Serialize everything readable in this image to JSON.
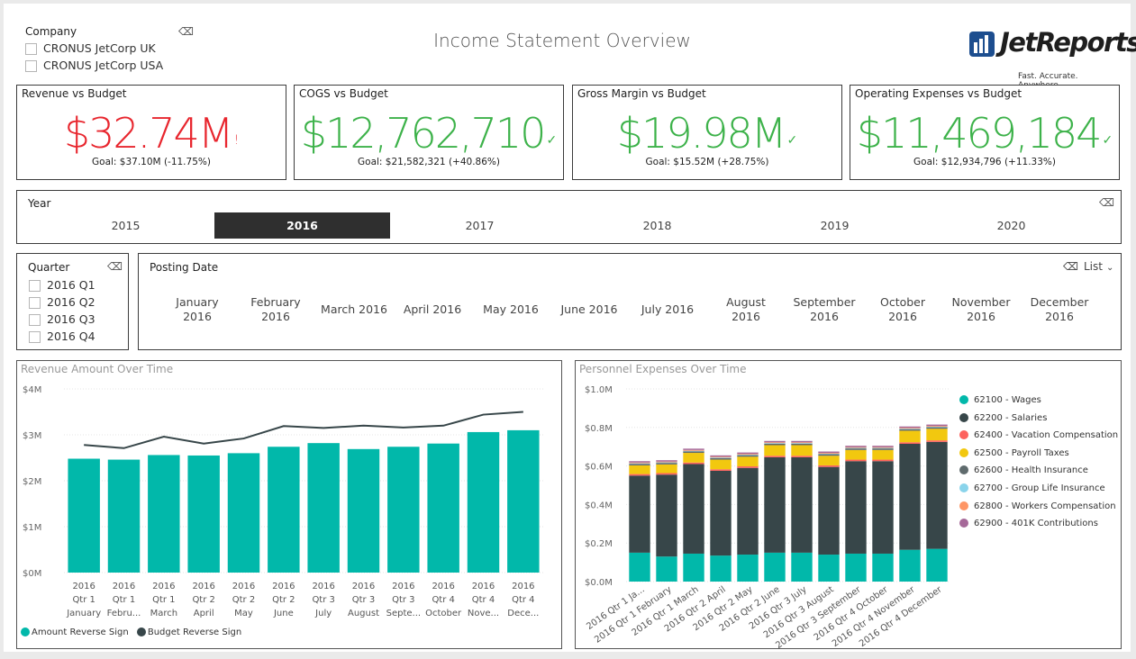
{
  "page": {
    "title": "Income Statement Overview"
  },
  "logo": {
    "brand": "JetReports",
    "tagline": "Fast. Accurate. Anywhere."
  },
  "company_slicer": {
    "title": "Company",
    "items": [
      {
        "label": "CRONUS JetCorp UK"
      },
      {
        "label": "CRONUS JetCorp USA"
      }
    ]
  },
  "kpis": [
    {
      "title": "Revenue vs Budget",
      "value": "$32.74M",
      "mark": "!",
      "goal": "Goal: $37.10M (-11.75%)",
      "color": "#e8262e"
    },
    {
      "title": "COGS vs Budget",
      "value": "$12,762,710",
      "mark": "✓",
      "goal": "Goal: $21,582,321 (+40.86%)",
      "color": "#3db24a"
    },
    {
      "title": "Gross Margin vs Budget",
      "value": "$19.98M",
      "mark": "✓",
      "goal": "Goal: $15.52M (+28.75%)",
      "color": "#3db24a"
    },
    {
      "title": "Operating Expenses vs Budget",
      "value": "$11,469,184",
      "mark": "✓",
      "goal": "Goal: $12,934,796 (+11.33%)",
      "color": "#3db24a"
    }
  ],
  "year_slicer": {
    "title": "Year",
    "items": [
      "2015",
      "2016",
      "2017",
      "2018",
      "2019",
      "2020"
    ],
    "selected": "2016"
  },
  "quarter_slicer": {
    "title": "Quarter",
    "items": [
      "2016 Q1",
      "2016 Q2",
      "2016 Q3",
      "2016 Q4"
    ]
  },
  "posting_date_slicer": {
    "title": "Posting Date",
    "mode_label": "List",
    "months": [
      [
        "January",
        "2016"
      ],
      [
        "February",
        "2016"
      ],
      [
        "March 2016"
      ],
      [
        "April 2016"
      ],
      [
        "May 2016"
      ],
      [
        "June 2016"
      ],
      [
        "July 2016"
      ],
      [
        "August",
        "2016"
      ],
      [
        "September",
        "2016"
      ],
      [
        "October",
        "2016"
      ],
      [
        "November",
        "2016"
      ],
      [
        "December",
        "2016"
      ]
    ]
  },
  "chart_data": [
    {
      "type": "bar",
      "title": "Revenue Amount Over Time",
      "y_ticks": [
        "$0M",
        "$1M",
        "$2M",
        "$3M",
        "$4M"
      ],
      "ylim": [
        0,
        4000000
      ],
      "categories": [
        [
          "2016",
          "Qtr 1",
          "January"
        ],
        [
          "2016",
          "Qtr 1",
          "Febru..."
        ],
        [
          "2016",
          "Qtr 1",
          "March"
        ],
        [
          "2016",
          "Qtr 2",
          "April"
        ],
        [
          "2016",
          "Qtr 2",
          "May"
        ],
        [
          "2016",
          "Qtr 2",
          "June"
        ],
        [
          "2016",
          "Qtr 3",
          "July"
        ],
        [
          "2016",
          "Qtr 3",
          "August"
        ],
        [
          "2016",
          "Qtr 3",
          "Septe..."
        ],
        [
          "2016",
          "Qtr 4",
          "October"
        ],
        [
          "2016",
          "Qtr 4",
          "Nove..."
        ],
        [
          "2016",
          "Qtr 4",
          "Dece..."
        ]
      ],
      "series": [
        {
          "name": "Amount Reverse Sign",
          "kind": "bar",
          "color": "#01b8aa",
          "values": [
            2480000,
            2460000,
            2560000,
            2550000,
            2600000,
            2740000,
            2820000,
            2690000,
            2740000,
            2810000,
            3060000,
            3100000
          ]
        },
        {
          "name": "Budget Reverse Sign",
          "kind": "line",
          "color": "#374649",
          "values": [
            2780000,
            2710000,
            2960000,
            2810000,
            2920000,
            3190000,
            3150000,
            3200000,
            3160000,
            3200000,
            3440000,
            3500000
          ]
        }
      ],
      "grid": true,
      "legend": "bottom-left"
    },
    {
      "type": "bar",
      "stacked": true,
      "title": "Personnel Expenses Over Time",
      "y_ticks": [
        "$0.0M",
        "$0.2M",
        "$0.4M",
        "$0.6M",
        "$0.8M",
        "$1.0M"
      ],
      "ylim": [
        0,
        1000000
      ],
      "categories": [
        "2016 Qtr 1 Ja...",
        "2016 Qtr 1 February",
        "2016 Qtr 1 March",
        "2016 Qtr 2 April",
        "2016 Qtr 2 May",
        "2016 Qtr 2 June",
        "2016 Qtr 3 July",
        "2016 Qtr 3 August",
        "2016 Qtr 3 September",
        "2016 Qtr 4 October",
        "2016 Qtr 4 November",
        "2016 Qtr 4 December"
      ],
      "series": [
        {
          "name": "62100 - Wages",
          "color": "#01b8aa",
          "values": [
            150000,
            130000,
            145000,
            135000,
            140000,
            150000,
            150000,
            140000,
            145000,
            145000,
            165000,
            170000
          ]
        },
        {
          "name": "62200 - Salaries",
          "color": "#374649",
          "values": [
            400000,
            425000,
            465000,
            440000,
            450000,
            495000,
            495000,
            455000,
            480000,
            480000,
            550000,
            555000
          ]
        },
        {
          "name": "62400 - Vacation Compensation",
          "color": "#fd625e",
          "values": [
            8000,
            8000,
            8000,
            8000,
            8000,
            8000,
            8000,
            8000,
            8000,
            8000,
            8000,
            8000
          ]
        },
        {
          "name": "62500 - Payroll Taxes",
          "color": "#f2c80f",
          "values": [
            45000,
            45000,
            50000,
            50000,
            50000,
            55000,
            55000,
            50000,
            50000,
            50000,
            60000,
            60000
          ]
        },
        {
          "name": "62600 - Health Insurance",
          "color": "#5f6b6d",
          "values": [
            8000,
            8000,
            8000,
            8000,
            8000,
            8000,
            8000,
            8000,
            8000,
            8000,
            8000,
            8000
          ]
        },
        {
          "name": "62700 - Group Life Insurance",
          "color": "#8ad4eb",
          "values": [
            3000,
            3000,
            3000,
            3000,
            3000,
            3000,
            3000,
            3000,
            3000,
            3000,
            3000,
            3000
          ]
        },
        {
          "name": "62800 - Workers Compensation",
          "color": "#fe9666",
          "values": [
            4000,
            4000,
            4000,
            4000,
            4000,
            4000,
            4000,
            4000,
            4000,
            4000,
            4000,
            4000
          ]
        },
        {
          "name": "62900 - 401K Contributions",
          "color": "#a66999",
          "values": [
            7000,
            7000,
            7000,
            7000,
            7000,
            7000,
            7000,
            7000,
            7000,
            7000,
            7000,
            7000
          ]
        }
      ],
      "grid": true,
      "legend": "right"
    }
  ]
}
